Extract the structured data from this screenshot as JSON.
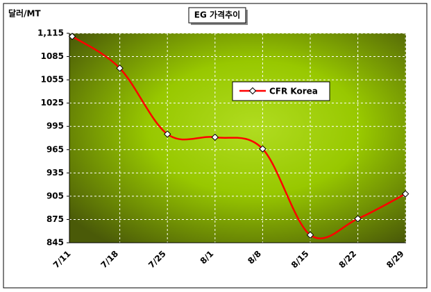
{
  "chart_data": {
    "type": "line",
    "title": "EG 가격추이",
    "y_label": "달러/MT",
    "categories": [
      "7/11",
      "7/18",
      "7/25",
      "8/1",
      "8/8",
      "8/15",
      "8/22",
      "8/29"
    ],
    "series": [
      {
        "name": "CFR Korea",
        "color": "#ff0000",
        "values": [
          1111,
          1070,
          985,
          981,
          966,
          855,
          876,
          908
        ]
      }
    ],
    "ylim": [
      845,
      1115
    ],
    "yticks": [
      845,
      875,
      905,
      935,
      965,
      995,
      1025,
      1055,
      1085,
      {
        "value": 1115,
        "label": "1,115"
      }
    ],
    "grid": true,
    "legend": "upper right"
  }
}
